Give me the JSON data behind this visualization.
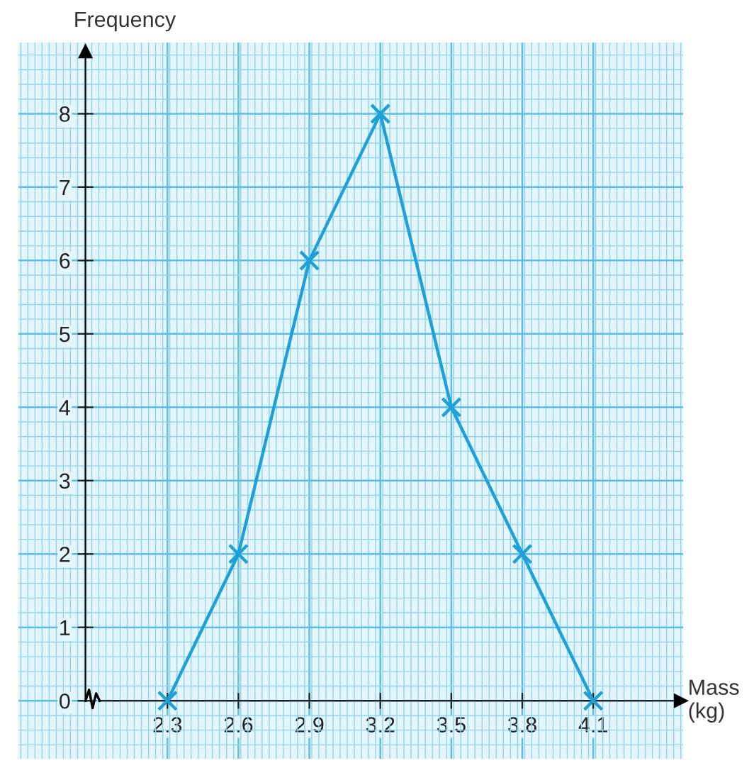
{
  "chart_data": {
    "type": "line",
    "xlabel": "Mass\n(kg)",
    "ylabel": "Frequency",
    "x": [
      2.3,
      2.6,
      2.9,
      3.2,
      3.5,
      3.8,
      4.1
    ],
    "series": [
      {
        "color": "#1ea0d8",
        "values": [
          0,
          2,
          6,
          8,
          4,
          2,
          0
        ]
      }
    ],
    "xlim": [
      1.67,
      4.48
    ],
    "ylim": [
      -0.79,
      8.97
    ],
    "xticks": [
      2.3,
      2.6,
      2.9,
      3.2,
      3.5,
      3.8,
      4.1
    ],
    "yticks": [
      0,
      1,
      2,
      3,
      4,
      5,
      6,
      7,
      8
    ],
    "grid": true,
    "marker": "cross",
    "line_style": "solid",
    "legend": false
  }
}
